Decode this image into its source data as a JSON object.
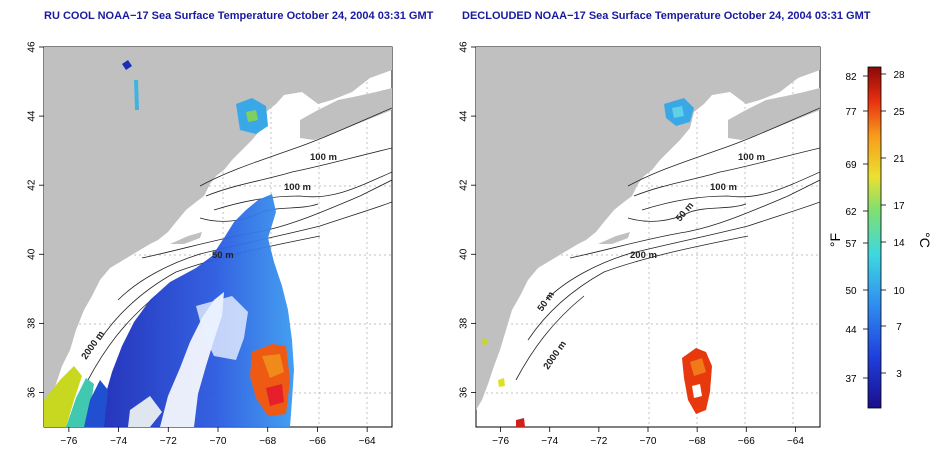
{
  "panels": [
    {
      "title": "RU COOL NOAA−17 Sea Surface Temperature October 24, 2004 03:31 GMT",
      "contour_labels": [
        "100 m",
        "100 m",
        "2000 m",
        "50 m"
      ]
    },
    {
      "title": "DECLOUDED NOAA−17 Sea Surface Temperature October 24, 2004 03:31 GMT",
      "contour_labels": [
        "100 m",
        "100 m",
        "50 m",
        "200 m",
        "50 m",
        "2000 m"
      ]
    }
  ],
  "axes": {
    "lon_ticks": [
      "−76",
      "−74",
      "−72",
      "−70",
      "−68",
      "−66",
      "−64"
    ],
    "lat_ticks": [
      "46",
      "44",
      "42",
      "40",
      "38",
      "36"
    ]
  },
  "colorbar": {
    "f_ticks": [
      "82",
      "77",
      "69",
      "62",
      "57",
      "50",
      "44",
      "37"
    ],
    "c_ticks": [
      "28",
      "25",
      "21",
      "17",
      "14",
      "10",
      "7",
      "3"
    ],
    "f_label": "°F",
    "c_label": "°C"
  },
  "colors": {
    "title": "#1a1aa0",
    "land": "#c0c0c0",
    "sst_cold": "#2030c0",
    "sst_warm": "#e03010"
  }
}
